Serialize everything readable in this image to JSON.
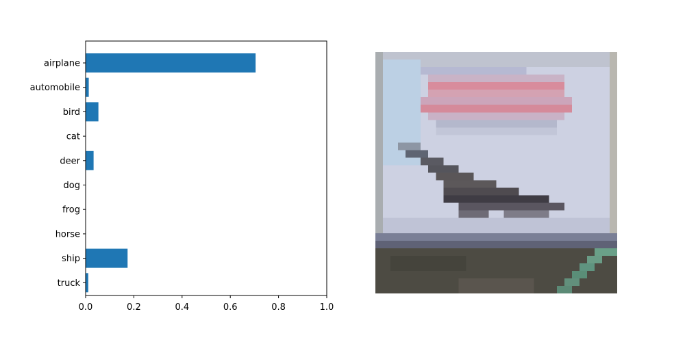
{
  "chart_data": {
    "type": "bar",
    "orientation": "horizontal",
    "categories": [
      "airplane",
      "automobile",
      "bird",
      "cat",
      "deer",
      "dog",
      "frog",
      "horse",
      "ship",
      "truck"
    ],
    "values": [
      0.705,
      0.013,
      0.053,
      0.0,
      0.033,
      0.0,
      0.0,
      0.0,
      0.174,
      0.011
    ],
    "xlim": [
      0,
      1.0
    ],
    "xticks": [
      "0.0",
      "0.2",
      "0.4",
      "0.6",
      "0.8",
      "1.0"
    ],
    "bar_color": "#1f77b4",
    "title": "",
    "xlabel": "",
    "ylabel": "",
    "grid": false
  },
  "image_panel": {
    "subject": "airplane-photo",
    "colors": {
      "sky": "#c9cedf",
      "banner_red": "#d98a9a",
      "plane": "#5a5558",
      "ground": "#4e4c44",
      "stripe": "#6a9a82"
    }
  }
}
